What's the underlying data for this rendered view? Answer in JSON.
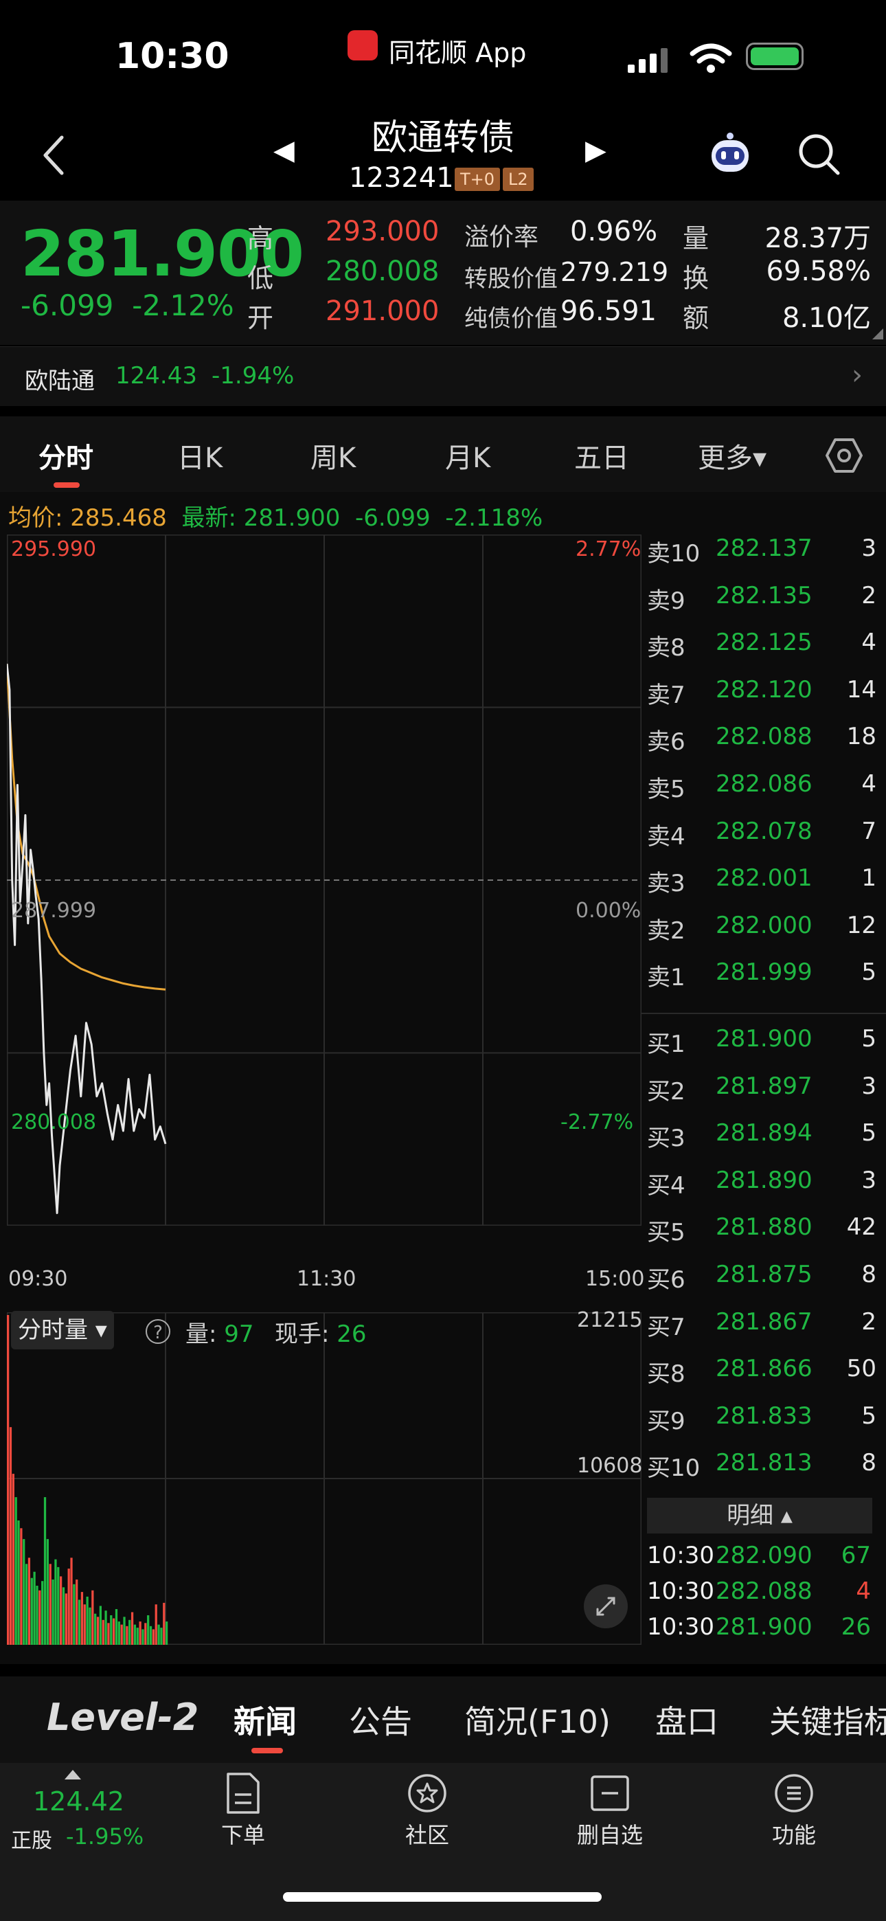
{
  "status_bar": {
    "time": "10:30",
    "app_name": "同花顺 App"
  },
  "header": {
    "title": "欧通转债",
    "code": "123241",
    "tags": [
      "T+0",
      "L2"
    ]
  },
  "quote": {
    "price": "281.900",
    "change": "-6.099",
    "change_pct": "-2.12%",
    "high_label": "高",
    "high": "293.000",
    "low_label": "低",
    "low": "280.008",
    "open_label": "开",
    "open": "291.000",
    "premium_label": "溢价率",
    "premium": "0.96%",
    "conv_value_label": "转股价值",
    "conv_value": "279.219",
    "bond_value_label": "纯债价值",
    "bond_value": "96.591",
    "volume_label": "量",
    "volume": "28.37万",
    "turnover_label": "换",
    "turnover": "69.58%",
    "amount_label": "额",
    "amount": "8.10亿"
  },
  "related_stock": {
    "name": "欧陆通",
    "price": "124.43",
    "change_pct": "-1.94%"
  },
  "chart_tabs": [
    "分时",
    "日K",
    "周K",
    "月K",
    "五日",
    "更多▾"
  ],
  "chart_info": {
    "avg_label": "均价: 285.468",
    "latest_label": "最新: 281.900",
    "latest_change": "-6.099",
    "latest_pct": "-2.118%",
    "price_top": "295.990",
    "price_mid": "287.999",
    "price_bottom": "280.008",
    "pct_top": "2.77%",
    "pct_mid": "0.00%",
    "pct_bottom": "-2.77%",
    "time_start": "09:30",
    "time_mid": "11:30",
    "time_end": "15:00",
    "vol_legend": "分时量 ▾",
    "vol_qty_label": "量:",
    "vol_qty": "97",
    "vol_hand_label": "现手:",
    "vol_hand": "26",
    "vol_top": "21215",
    "vol_mid": "10608"
  },
  "chart_data": {
    "type": "line",
    "x_range_minutes": [
      0,
      240
    ],
    "ylim": [
      280.008,
      295.99
    ],
    "prev_close": 287.999,
    "series": [
      {
        "name": "最新",
        "color": "#e8e8e8",
        "x": [
          0,
          1,
          2,
          3,
          4,
          5,
          6,
          7,
          8,
          9,
          10,
          11,
          12,
          13,
          14,
          15,
          16,
          17,
          18,
          19,
          20,
          22,
          24,
          26,
          28,
          30,
          32,
          34,
          36,
          38,
          40,
          42,
          44,
          46,
          48,
          50,
          52,
          54,
          56,
          58,
          60
        ],
        "y": [
          293.0,
          292.4,
          288.0,
          286.5,
          290.2,
          287.5,
          288.4,
          289.5,
          287.0,
          288.7,
          288.2,
          287.6,
          287.1,
          285.7,
          284.0,
          282.8,
          283.3,
          282.1,
          281.2,
          280.3,
          281.4,
          282.5,
          283.6,
          284.4,
          283.0,
          284.7,
          284.2,
          283.0,
          283.3,
          282.6,
          282.0,
          282.8,
          282.2,
          283.4,
          282.2,
          282.7,
          282.5,
          283.5,
          282.0,
          282.3,
          281.9
        ]
      },
      {
        "name": "均价",
        "color": "#e8a534",
        "x": [
          0,
          2,
          4,
          6,
          8,
          10,
          12,
          14,
          16,
          18,
          20,
          24,
          28,
          32,
          36,
          40,
          44,
          48,
          52,
          56,
          60
        ],
        "y": [
          293.0,
          290.8,
          289.3,
          288.6,
          288.4,
          288.1,
          287.6,
          287.1,
          286.7,
          286.5,
          286.3,
          286.1,
          285.95,
          285.85,
          285.75,
          285.68,
          285.61,
          285.56,
          285.52,
          285.49,
          285.47
        ]
      }
    ],
    "volume_ylim": [
      0,
      21215
    ],
    "volume": [
      [
        0,
        21215,
        "r"
      ],
      [
        1,
        14000,
        "r"
      ],
      [
        2,
        11000,
        "r"
      ],
      [
        3,
        9500,
        "g"
      ],
      [
        4,
        8000,
        "g"
      ],
      [
        5,
        7500,
        "r"
      ],
      [
        6,
        6800,
        "g"
      ],
      [
        7,
        5200,
        "g"
      ],
      [
        8,
        5600,
        "r"
      ],
      [
        9,
        4300,
        "g"
      ],
      [
        10,
        4700,
        "g"
      ],
      [
        11,
        3800,
        "g"
      ],
      [
        12,
        3500,
        "r"
      ],
      [
        13,
        4100,
        "g"
      ],
      [
        14,
        9500,
        "g"
      ],
      [
        15,
        6800,
        "g"
      ],
      [
        16,
        5200,
        "r"
      ],
      [
        17,
        4200,
        "g"
      ],
      [
        18,
        5500,
        "g"
      ],
      [
        19,
        5000,
        "g"
      ],
      [
        20,
        4400,
        "r"
      ],
      [
        21,
        3700,
        "g"
      ],
      [
        22,
        3300,
        "r"
      ],
      [
        23,
        4900,
        "r"
      ],
      [
        24,
        5600,
        "r"
      ],
      [
        25,
        3900,
        "g"
      ],
      [
        26,
        4200,
        "r"
      ],
      [
        27,
        2900,
        "g"
      ],
      [
        28,
        3400,
        "r"
      ],
      [
        29,
        2600,
        "r"
      ],
      [
        30,
        3100,
        "g"
      ],
      [
        31,
        2400,
        "g"
      ],
      [
        32,
        3500,
        "r"
      ],
      [
        33,
        2000,
        "g"
      ],
      [
        34,
        1800,
        "r"
      ],
      [
        35,
        2500,
        "g"
      ],
      [
        36,
        1600,
        "r"
      ],
      [
        37,
        2200,
        "g"
      ],
      [
        38,
        1400,
        "r"
      ],
      [
        39,
        1900,
        "g"
      ],
      [
        40,
        1700,
        "r"
      ],
      [
        41,
        2300,
        "g"
      ],
      [
        42,
        1500,
        "g"
      ],
      [
        43,
        1300,
        "r"
      ],
      [
        44,
        1800,
        "g"
      ],
      [
        45,
        1200,
        "r"
      ],
      [
        46,
        1600,
        "g"
      ],
      [
        47,
        2100,
        "r"
      ],
      [
        48,
        1300,
        "g"
      ],
      [
        49,
        1100,
        "g"
      ],
      [
        50,
        1500,
        "r"
      ],
      [
        51,
        1000,
        "g"
      ],
      [
        52,
        1400,
        "r"
      ],
      [
        53,
        1900,
        "g"
      ],
      [
        54,
        1200,
        "g"
      ],
      [
        55,
        1000,
        "r"
      ],
      [
        56,
        2600,
        "r"
      ],
      [
        57,
        1300,
        "g"
      ],
      [
        58,
        1100,
        "g"
      ],
      [
        59,
        2700,
        "r"
      ],
      [
        60,
        1500,
        "g"
      ]
    ]
  },
  "order_book": {
    "asks": [
      {
        "label": "卖10",
        "price": "282.137",
        "vol": "3"
      },
      {
        "label": "卖9",
        "price": "282.135",
        "vol": "2"
      },
      {
        "label": "卖8",
        "price": "282.125",
        "vol": "4"
      },
      {
        "label": "卖7",
        "price": "282.120",
        "vol": "14"
      },
      {
        "label": "卖6",
        "price": "282.088",
        "vol": "18"
      },
      {
        "label": "卖5",
        "price": "282.086",
        "vol": "4"
      },
      {
        "label": "卖4",
        "price": "282.078",
        "vol": "7"
      },
      {
        "label": "卖3",
        "price": "282.001",
        "vol": "1"
      },
      {
        "label": "卖2",
        "price": "282.000",
        "vol": "12"
      },
      {
        "label": "卖1",
        "price": "281.999",
        "vol": "5"
      }
    ],
    "bids": [
      {
        "label": "买1",
        "price": "281.900",
        "vol": "5"
      },
      {
        "label": "买2",
        "price": "281.897",
        "vol": "3"
      },
      {
        "label": "买3",
        "price": "281.894",
        "vol": "5"
      },
      {
        "label": "买4",
        "price": "281.890",
        "vol": "3"
      },
      {
        "label": "买5",
        "price": "281.880",
        "vol": "42"
      },
      {
        "label": "买6",
        "price": "281.875",
        "vol": "8"
      },
      {
        "label": "买7",
        "price": "281.867",
        "vol": "2"
      },
      {
        "label": "买8",
        "price": "281.866",
        "vol": "50"
      },
      {
        "label": "买9",
        "price": "281.833",
        "vol": "5"
      },
      {
        "label": "买10",
        "price": "281.813",
        "vol": "8"
      }
    ],
    "detail_header": "明细 ▴",
    "details": [
      {
        "time": "10:30",
        "price": "282.090",
        "vol": "67",
        "price_color": "green",
        "vol_color": "green"
      },
      {
        "time": "10:30",
        "price": "282.088",
        "vol": "4",
        "price_color": "green",
        "vol_color": "red"
      },
      {
        "time": "10:30",
        "price": "281.900",
        "vol": "26",
        "price_color": "green",
        "vol_color": "green"
      }
    ]
  },
  "news_tabs": {
    "logo": "Level-2",
    "items": [
      "新闻",
      "公告",
      "简况(F10)",
      "盘口",
      "关键指标"
    ]
  },
  "bottom_nav": {
    "underlying_price": "124.42",
    "underlying_label": "正股",
    "underlying_pct": "-1.95%",
    "items": [
      "下单",
      "社区",
      "删自选",
      "功能"
    ]
  },
  "colors": {
    "up": "#f04a3e",
    "down": "#1fb843",
    "avg": "#e8a534",
    "background": "#000000"
  },
  "icons": [
    "signal-icon",
    "wifi-icon",
    "battery-icon",
    "back-icon",
    "prev-arrow-icon",
    "next-arrow-icon",
    "robot-icon",
    "search-icon",
    "settings-hex-icon",
    "help-icon",
    "expand-icon",
    "order-icon",
    "community-icon",
    "remove-watchlist-icon",
    "menu-icon"
  ]
}
